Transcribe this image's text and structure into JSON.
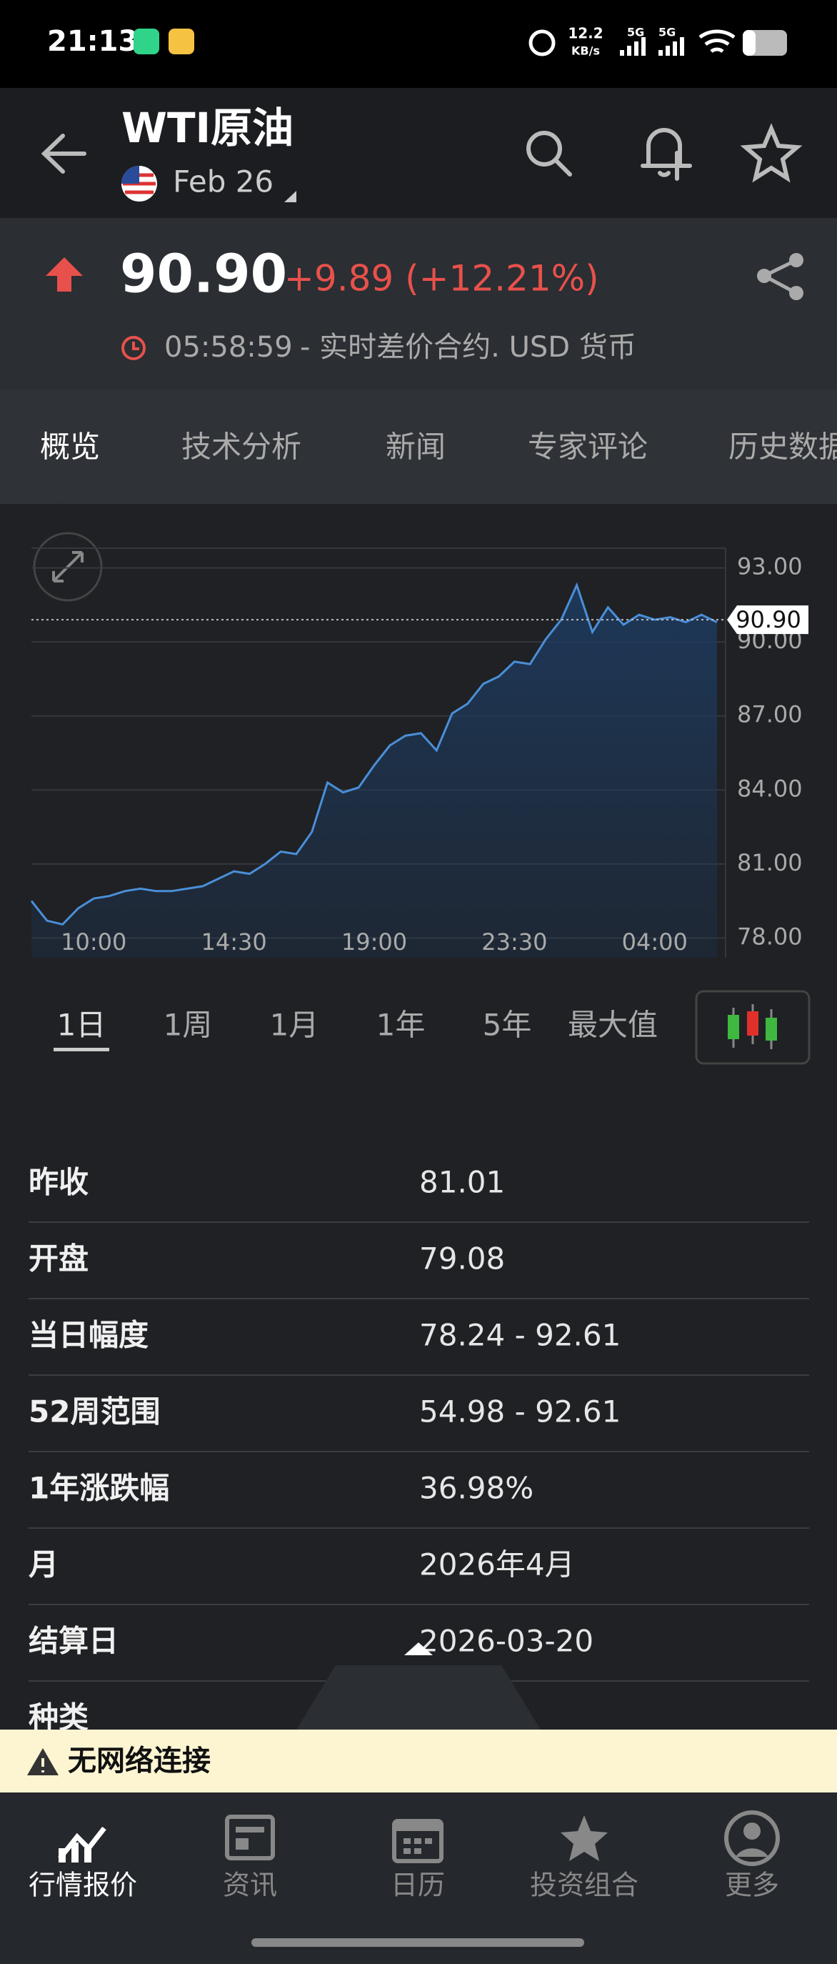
{
  "status_bar": {
    "time": "21:13",
    "speed": "12.2",
    "speed_unit": "KB/s",
    "network_1": "5G",
    "network_2": "5G"
  },
  "header": {
    "title": "WTI原油",
    "contract": "Feb 26"
  },
  "quote": {
    "price": "90.90",
    "change": "+9.89 (+12.21%)",
    "time": "05:58:59",
    "description": "- 实时差价合约. USD 货币"
  },
  "tabs": [
    "概览",
    "技术分析",
    "新闻",
    "专家评论",
    "历史数据"
  ],
  "chart_data": {
    "type": "line",
    "categories": [
      null,
      null,
      null,
      null,
      "10:00",
      null,
      null,
      null,
      null,
      null,
      null,
      null,
      null,
      "14:30",
      null,
      null,
      null,
      null,
      null,
      null,
      null,
      null,
      "19:00",
      null,
      null,
      null,
      null,
      null,
      null,
      null,
      null,
      "23:30",
      null,
      null,
      null,
      null,
      null,
      null,
      null,
      null,
      "04:00",
      null,
      null,
      null,
      null
    ],
    "values": [
      79.5,
      78.7,
      78.55,
      79.2,
      79.6,
      79.7,
      79.9,
      80.0,
      79.9,
      79.9,
      80.0,
      80.1,
      80.4,
      80.7,
      80.6,
      81.0,
      81.5,
      81.4,
      82.3,
      84.3,
      83.9,
      84.1,
      85.0,
      85.8,
      86.2,
      86.3,
      85.6,
      87.1,
      87.5,
      88.3,
      88.6,
      89.2,
      89.1,
      90.1,
      90.9,
      92.3,
      90.4,
      91.4,
      90.7,
      91.1,
      90.9,
      91.0,
      90.8,
      91.1,
      90.8
    ],
    "color": "#4a8fd8",
    "ylim": [
      77.2,
      93.8
    ],
    "yticks": [
      {
        "value": 78,
        "label": "78.00"
      },
      {
        "value": 81,
        "label": "81.00"
      },
      {
        "value": 84,
        "label": "84.00"
      },
      {
        "value": 87,
        "label": "87.00"
      },
      {
        "value": 90,
        "label": "90.00"
      },
      {
        "value": 93,
        "label": "93.00"
      }
    ],
    "grid": true,
    "last_price": {
      "value": 90.9,
      "label": "90.90"
    }
  },
  "ranges": [
    "1日",
    "1周",
    "1月",
    "1年",
    "5年",
    "最大值"
  ],
  "stats": [
    [
      "昨收",
      "81.01"
    ],
    [
      "开盘",
      "79.08"
    ],
    [
      "当日幅度",
      "78.24 - 92.61"
    ],
    [
      "52周范围",
      "54.98 - 92.61"
    ],
    [
      "1年涨跌幅",
      "36.98%"
    ],
    [
      "月",
      "2026年4月"
    ],
    [
      "结算日",
      "2026-03-20"
    ],
    [
      "种类"
    ]
  ],
  "banner": "无网络连接",
  "nav": [
    "行情报价",
    "资讯",
    "日历",
    "投资组合",
    "更多"
  ]
}
